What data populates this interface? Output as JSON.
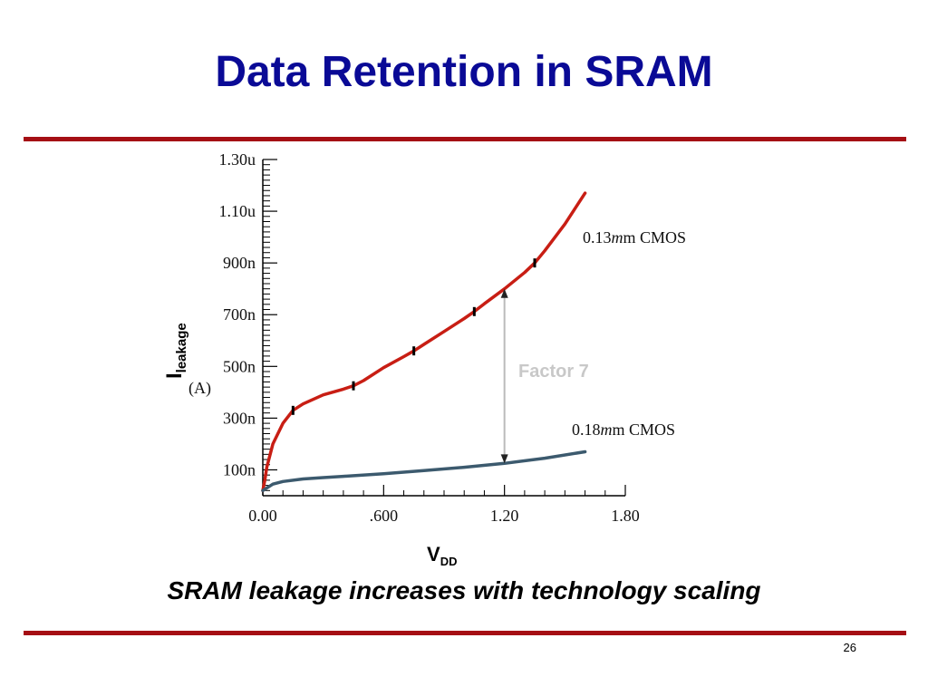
{
  "slide": {
    "title": "Data Retention in SRAM",
    "caption": "SRAM leakage increases with technology scaling",
    "page_number": "26"
  },
  "colors": {
    "title": "#0a0a96",
    "rule": "#a50f14",
    "series_013": "#c81e14",
    "series_018": "#3c5a6e",
    "annotation": "#c8c8c8"
  },
  "chart_data": {
    "type": "line",
    "x_ticks": [
      "0.00",
      ".600",
      "1.20",
      "1.80"
    ],
    "x_tick_values": [
      0,
      0.6,
      1.2,
      1.8
    ],
    "y_ticks": [
      "100n",
      "300n",
      "500n",
      "700n",
      "900n",
      "1.10u",
      "1.30u"
    ],
    "y_tick_values": [
      100,
      300,
      500,
      700,
      900,
      1100,
      1300
    ],
    "xlim": [
      0,
      1.8
    ],
    "ylim": [
      0,
      1300
    ],
    "y_unit_note": "values in nA",
    "xlabel": {
      "main": "V",
      "sub": "DD"
    },
    "ylabel": {
      "main": "I",
      "sub": "leakage",
      "unit": "(A)"
    },
    "series": [
      {
        "name": "0.13μm CMOS",
        "label_parts": [
          "0.13",
          "m",
          "m CMOS"
        ],
        "color": "#c81e14",
        "x": [
          0.0,
          0.01,
          0.02,
          0.05,
          0.1,
          0.15,
          0.2,
          0.3,
          0.4,
          0.45,
          0.5,
          0.6,
          0.7,
          0.75,
          0.8,
          0.9,
          1.0,
          1.05,
          1.1,
          1.2,
          1.3,
          1.35,
          1.4,
          1.5,
          1.6
        ],
        "y": [
          20,
          60,
          110,
          200,
          280,
          330,
          355,
          390,
          412,
          425,
          445,
          495,
          538,
          560,
          585,
          635,
          685,
          712,
          742,
          800,
          863,
          900,
          947,
          1050,
          1170
        ],
        "markers_x": [
          0.15,
          0.45,
          0.75,
          1.05,
          1.35
        ]
      },
      {
        "name": "0.18μm CMOS",
        "label_parts": [
          "0.18",
          "m",
          "m CMOS"
        ],
        "color": "#3c5a6e",
        "x": [
          0.0,
          0.05,
          0.1,
          0.2,
          0.3,
          0.4,
          0.6,
          0.8,
          1.0,
          1.2,
          1.4,
          1.6
        ],
        "y": [
          20,
          45,
          55,
          65,
          70,
          75,
          85,
          97,
          110,
          125,
          145,
          170
        ]
      }
    ],
    "annotation": {
      "text": "Factor 7",
      "x": 1.2,
      "from_y": 125,
      "to_y": 800
    }
  }
}
